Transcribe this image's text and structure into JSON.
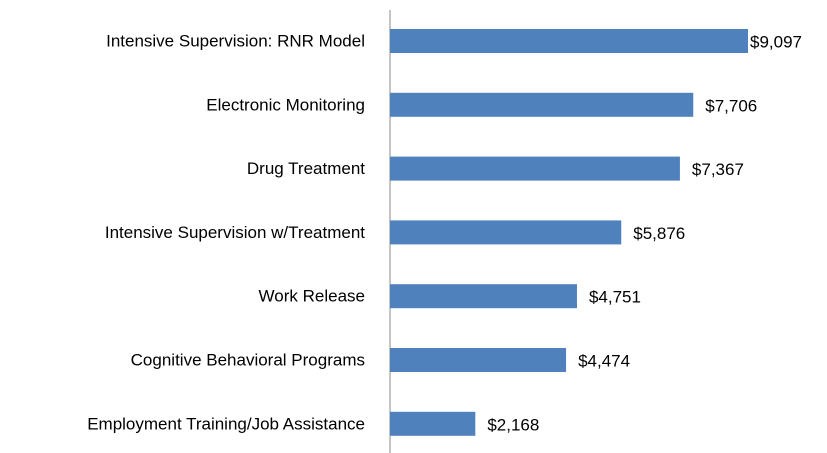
{
  "chart_data": {
    "type": "bar",
    "orientation": "horizontal",
    "categories": [
      "Intensive Supervision: RNR Model",
      "Electronic Monitoring",
      "Drug Treatment",
      "Intensive Supervision w/Treatment",
      "Work Release",
      "Cognitive Behavioral Programs",
      "Employment Training/Job Assistance"
    ],
    "values": [
      9097,
      7706,
      7367,
      5876,
      4751,
      4474,
      2168
    ],
    "value_labels": [
      "$9,097",
      "$7,706",
      "$7,367",
      "$5,876",
      "$4,751",
      "$4,474",
      "$2,168"
    ],
    "color": "#4f81bd"
  }
}
